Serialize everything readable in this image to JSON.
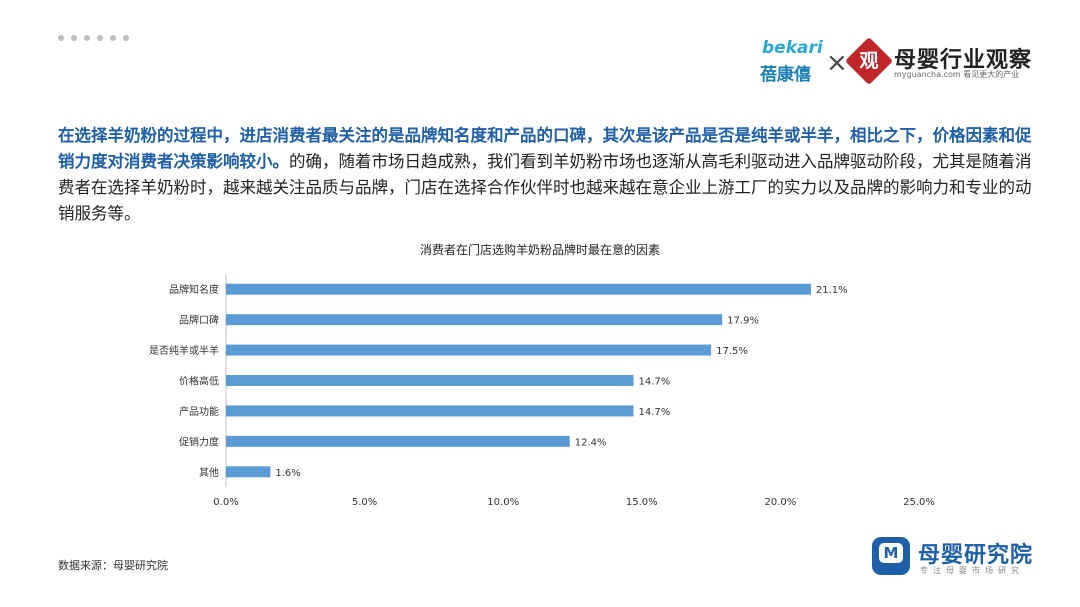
{
  "header": {
    "partner_logo_en": "bekari",
    "partner_logo_cn": "蓓康僖",
    "cross_symbol": "×",
    "publisher_seal": "观",
    "publisher_name": "母婴行业观察",
    "publisher_sub": "myguancha.com 看见更大的产业"
  },
  "paragraph": {
    "highlight": "在选择羊奶粉的过程中，进店消费者最关注的是品牌知名度和产品的口碑，其次是该产品是否是纯羊或半羊，相比之下，价格因素和促销力度对消费者决策影响较小。",
    "rest": "的确，随着市场日趋成熟，我们看到羊奶粉市场也逐渐从高毛利驱动进入品牌驱动阶段，尤其是随着消费者在选择羊奶粉时，越来越关注品质与品牌，门店在选择合作伙伴时也越来越在意企业上游工厂的实力以及品牌的影响力和专业的动销服务等。"
  },
  "chart_data": {
    "type": "bar",
    "orientation": "horizontal",
    "title": "消费者在门店选购羊奶粉品牌时最在意的因素",
    "categories": [
      "品牌知名度",
      "品牌口碑",
      "是否纯羊或半羊",
      "价格高低",
      "产品功能",
      "促销力度",
      "其他"
    ],
    "values": [
      21.1,
      17.9,
      17.5,
      14.7,
      14.7,
      12.4,
      1.6
    ],
    "value_labels": [
      "21.1%",
      "17.9%",
      "17.5%",
      "14.7%",
      "14.7%",
      "12.4%",
      "1.6%"
    ],
    "xlim": [
      0,
      25
    ],
    "xticks": [
      0,
      5,
      10,
      15,
      20,
      25
    ],
    "xtick_labels": [
      "0.0%",
      "5.0%",
      "10.0%",
      "15.0%",
      "20.0%",
      "25.0%"
    ],
    "bar_color": "#5b9bd5",
    "grid": false,
    "legend": "none"
  },
  "footer": {
    "source": "数据来源：母婴研究院",
    "brand_mark": "M",
    "brand_name": "母婴研究院",
    "brand_slogan": "专注母婴市场研究"
  }
}
